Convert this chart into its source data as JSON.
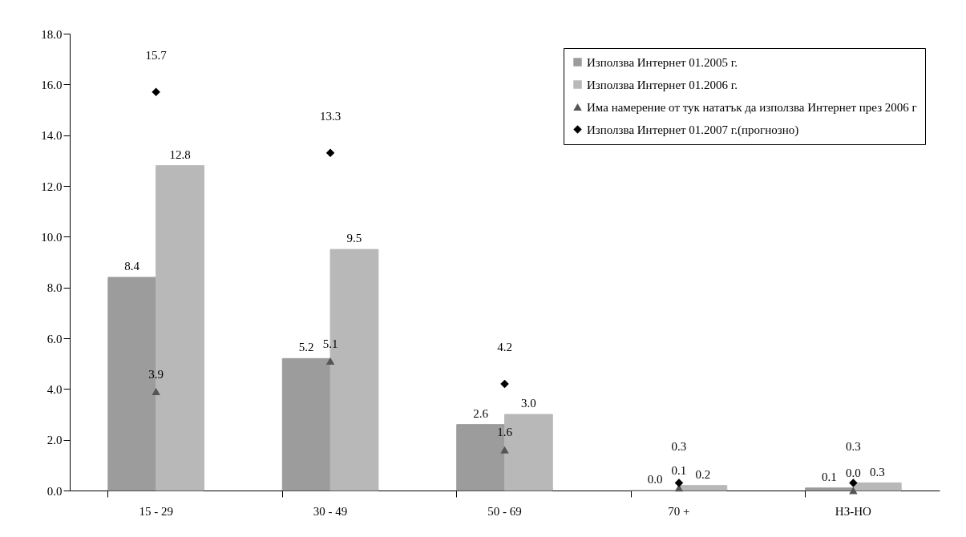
{
  "chart_data": {
    "type": "bar",
    "categories": [
      "15 - 29",
      "30 - 49",
      "50 - 69",
      "70 +",
      "НЗ-НО"
    ],
    "series": [
      {
        "name": "Използва Интернет 01.2005 г.",
        "type": "bar",
        "color": "#9c9c9c",
        "values": [
          8.4,
          5.2,
          2.6,
          0.0,
          0.1
        ],
        "value_labels": [
          "8.4",
          "5.2",
          "2.6",
          "0.0",
          "0.1"
        ]
      },
      {
        "name": "Използва Интернет 01.2006 г.",
        "type": "bar",
        "color": "#b8b8b8",
        "values": [
          12.8,
          9.5,
          3.0,
          0.2,
          0.3
        ],
        "value_labels": [
          "12.8",
          "9.5",
          "3.0",
          "0.2",
          "0.3"
        ]
      },
      {
        "name": "Има намерение от тук нататък да използва Интернет през 2006 г",
        "type": "scatter",
        "marker": "triangle",
        "color": "#555555",
        "values": [
          3.9,
          5.1,
          1.6,
          0.1,
          0.0
        ],
        "value_labels": [
          "3.9",
          "5.1",
          "1.6",
          "0.1",
          "0.0"
        ]
      },
      {
        "name": "Използва Интернет 01.2007 г.(прогнозно)",
        "type": "scatter",
        "marker": "diamond",
        "color": "#000000",
        "values": [
          15.7,
          13.3,
          4.2,
          0.3,
          0.3
        ],
        "value_labels": [
          "15.7",
          "13.3",
          "4.2",
          "0.3",
          "0.3"
        ]
      }
    ],
    "ylim": [
      0,
      18
    ],
    "yticks": [
      {
        "value": 0,
        "label": "0.0"
      },
      {
        "value": 2,
        "label": "2.0"
      },
      {
        "value": 4,
        "label": "4.0"
      },
      {
        "value": 6,
        "label": "6.0"
      },
      {
        "value": 8,
        "label": "8.0"
      },
      {
        "value": 10,
        "label": "10.0"
      },
      {
        "value": 12,
        "label": "12.0"
      },
      {
        "value": 14,
        "label": "14.0"
      },
      {
        "value": 16,
        "label": "16.0"
      },
      {
        "value": 18,
        "label": "18.0"
      }
    ],
    "grid": false,
    "legend": "top right"
  }
}
